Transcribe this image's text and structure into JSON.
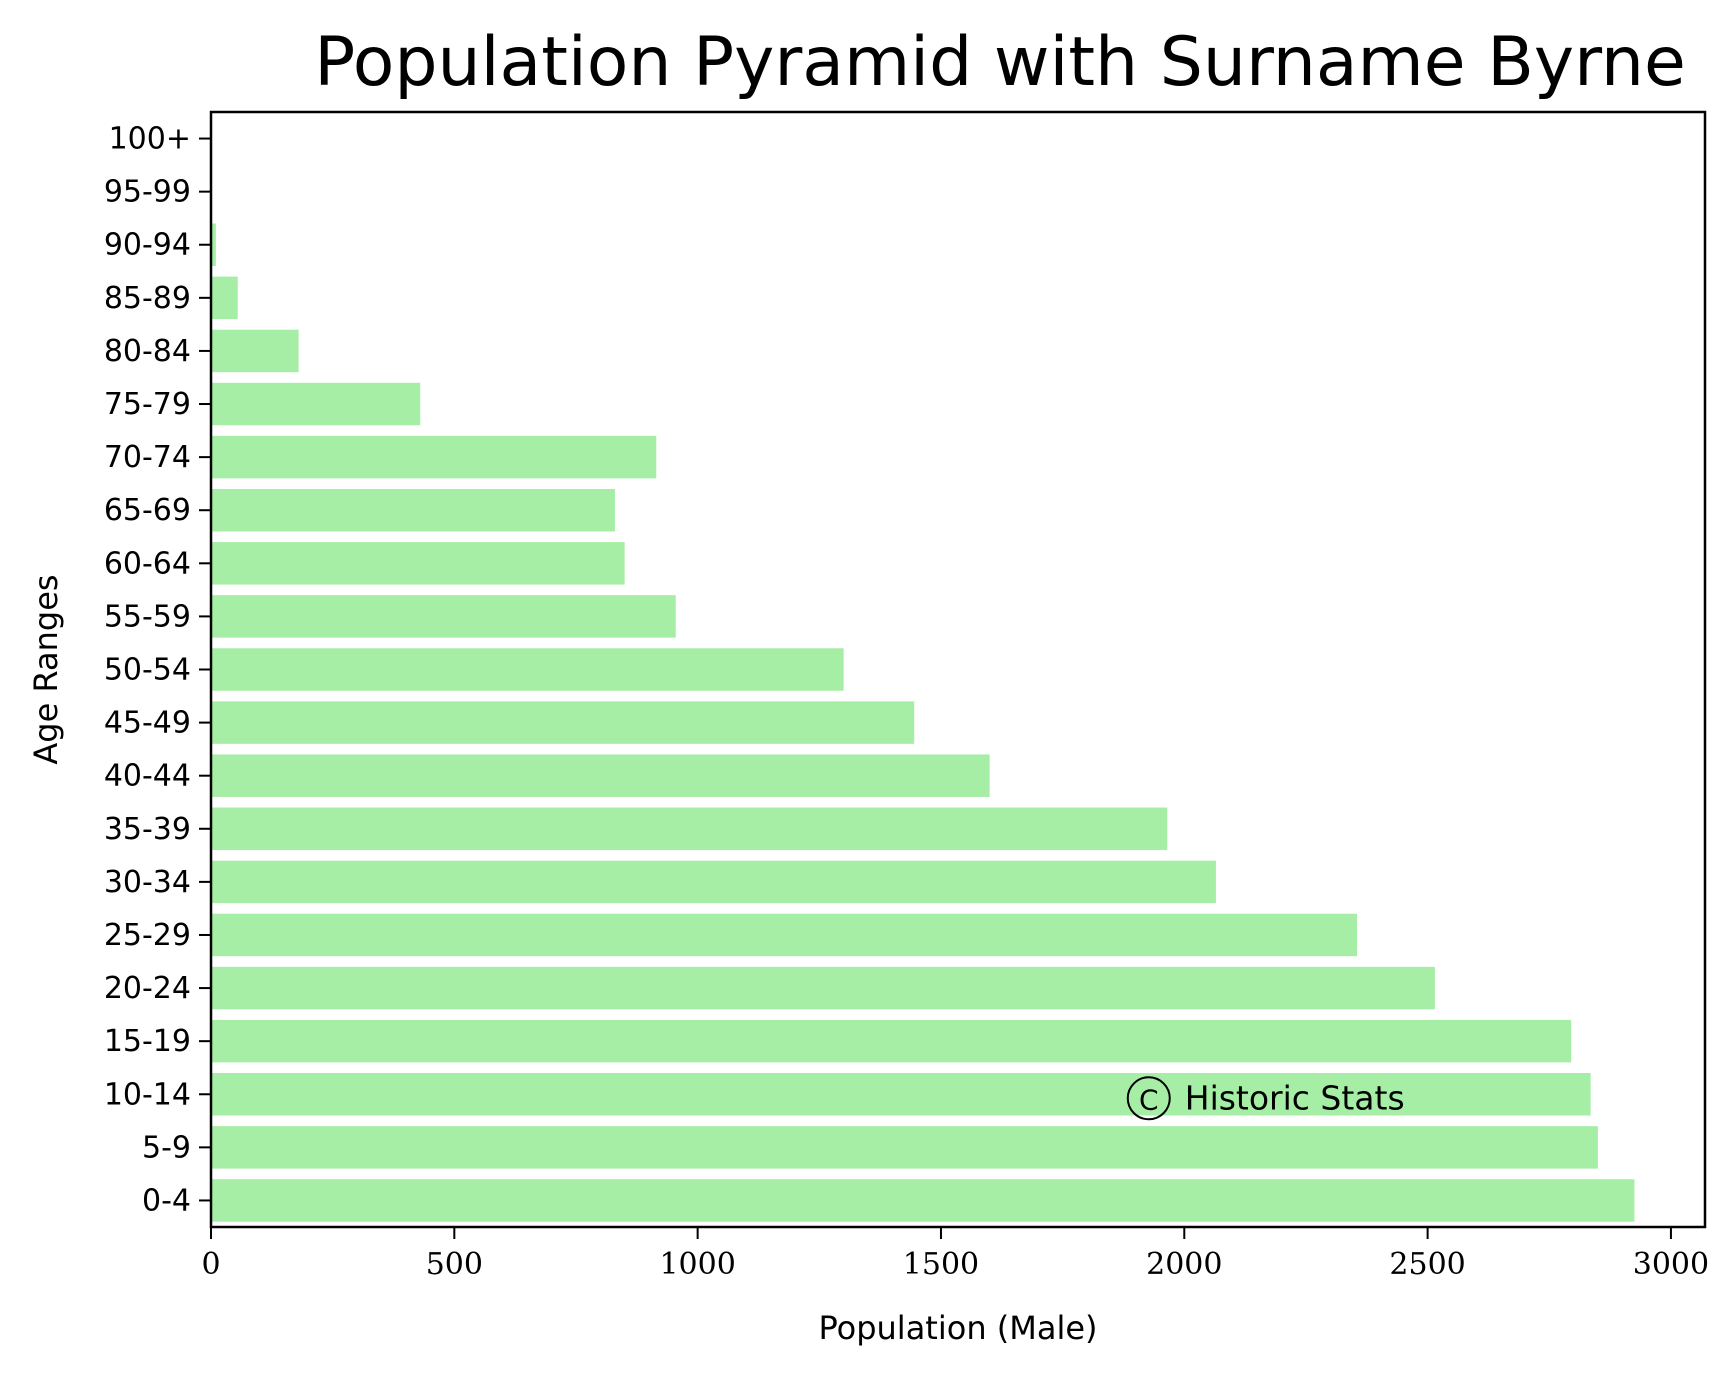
{
  "chart_data": {
    "type": "bar",
    "orientation": "horizontal",
    "title": "Population Pyramid with Surname Byrne",
    "xlabel": "Population (Male)",
    "ylabel": "Age Ranges",
    "xlim": [
      0,
      3070
    ],
    "xticks": [
      0,
      500,
      1000,
      1500,
      2000,
      2500,
      3000
    ],
    "categories": [
      "0-4",
      "5-9",
      "10-14",
      "15-19",
      "20-24",
      "25-29",
      "30-34",
      "35-39",
      "40-44",
      "45-49",
      "50-54",
      "55-59",
      "60-64",
      "65-69",
      "70-74",
      "75-79",
      "80-84",
      "85-89",
      "90-94",
      "95-99",
      "100+"
    ],
    "values": [
      2925,
      2850,
      2835,
      2795,
      2515,
      2355,
      2065,
      1965,
      1600,
      1445,
      1300,
      955,
      850,
      830,
      915,
      430,
      180,
      55,
      10,
      0,
      0
    ],
    "bar_color": "#a6eea6",
    "grid": false,
    "annotation": {
      "text": "Historic Stats",
      "symbol": "C",
      "x": 1890,
      "category": "10-14"
    }
  }
}
